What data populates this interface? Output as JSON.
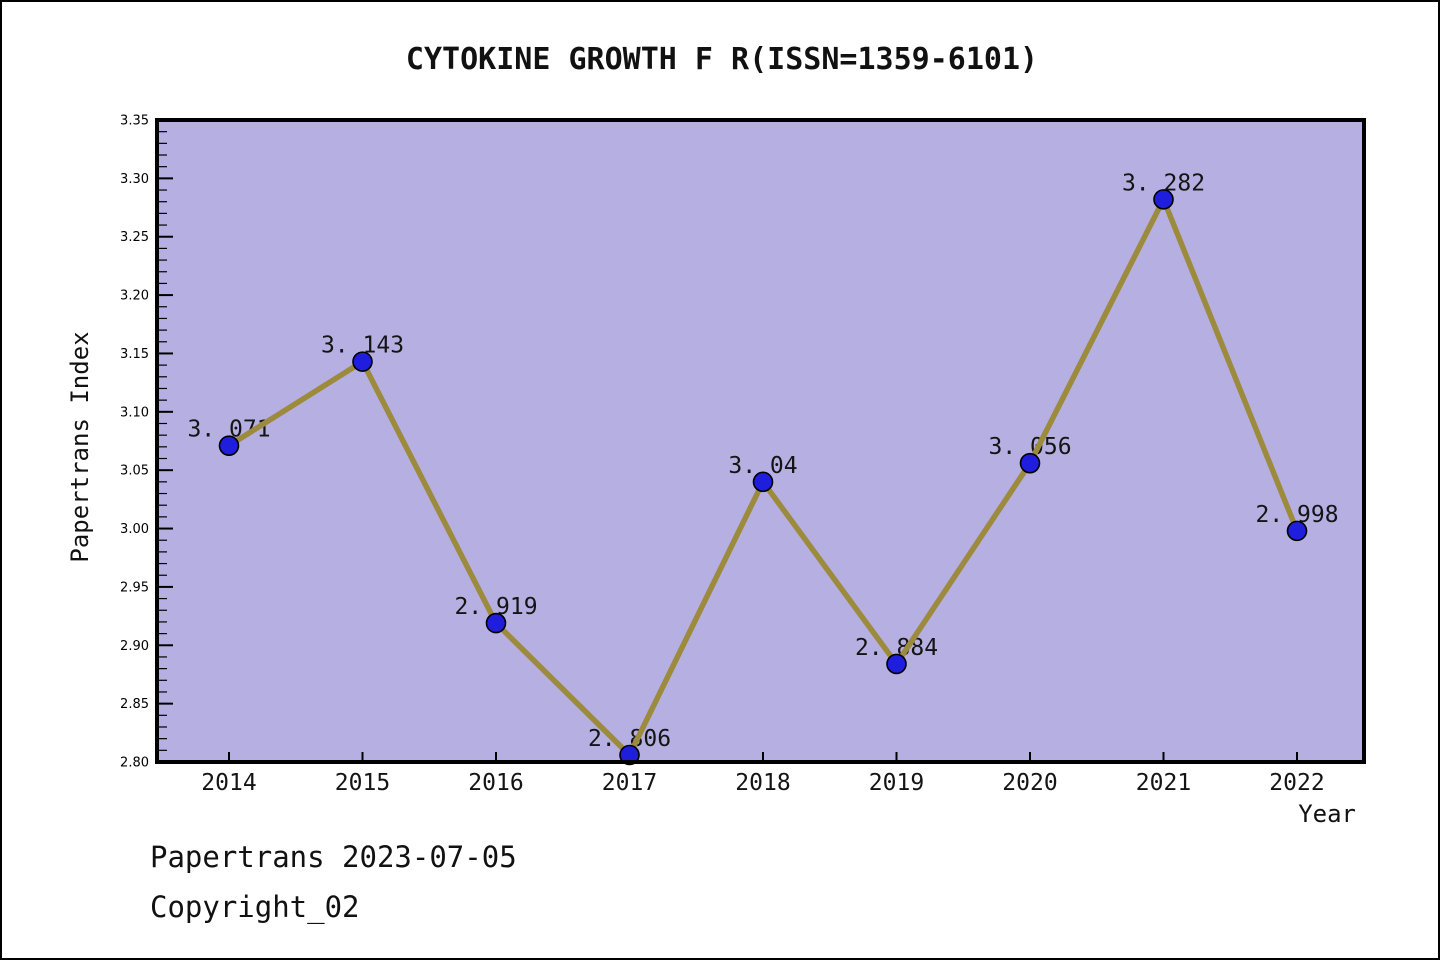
{
  "page": {
    "footer_line1": "Papertrans 2023-07-05",
    "footer_line2": "Copyright_02"
  },
  "chart_data": {
    "type": "line",
    "title": "CYTOKINE GROWTH F R(ISSN=1359-6101)",
    "xlabel": "Year",
    "ylabel": "Papertrans Index",
    "categories": [
      2014,
      2015,
      2016,
      2017,
      2018,
      2019,
      2020,
      2021,
      2022
    ],
    "values": [
      3.071,
      3.143,
      2.919,
      2.806,
      3.04,
      2.884,
      3.056,
      3.282,
      2.998
    ],
    "point_labels": [
      "3. 071",
      "3. 143",
      "2. 919",
      "2. 806",
      "3. 04",
      "2. 884",
      "3. 056",
      "3. 282",
      "2. 998"
    ],
    "ylim": [
      2.8,
      3.35
    ],
    "ytick_major_step": 0.05,
    "ytick_minor_step": 0.01,
    "ytick_labels": [
      "2.80",
      "2.85",
      "2.90",
      "2.95",
      "3.00",
      "3.05",
      "3.10",
      "3.15",
      "3.20",
      "3.25",
      "3.30",
      "3.35"
    ],
    "grid": false,
    "legend": "none",
    "colors": {
      "plot_bg": "#b6afe2",
      "line": "#9c8b3d",
      "marker_fill": "#1e1edc",
      "marker_edge": "#000000",
      "axis": "#000000",
      "text": "#141414",
      "page_bg": "#ffffff"
    }
  }
}
